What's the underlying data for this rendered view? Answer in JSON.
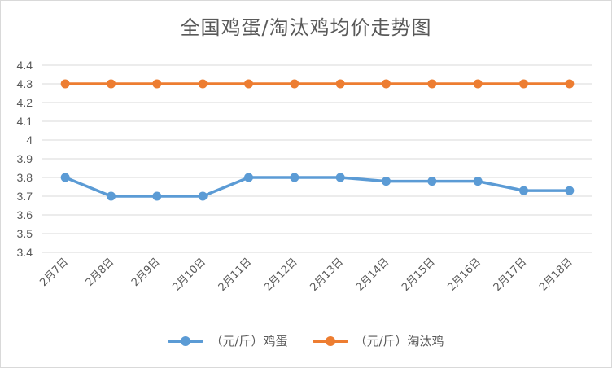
{
  "chart_data": {
    "type": "line",
    "title": "全国鸡蛋/淘汰鸡均价走势图",
    "categories": [
      "2月7日",
      "2月8日",
      "2月9日",
      "2月10日",
      "2月11日",
      "2月12日",
      "2月13日",
      "2月14日",
      "2月15日",
      "2月16日",
      "2月17日",
      "2月18日"
    ],
    "series": [
      {
        "name": "（元/斤）鸡蛋",
        "color": "#5b9bd5",
        "values": [
          3.8,
          3.7,
          3.7,
          3.7,
          3.8,
          3.8,
          3.8,
          3.78,
          3.78,
          3.78,
          3.73,
          3.73
        ]
      },
      {
        "name": "（元/斤）淘汰鸡",
        "color": "#ed7d31",
        "values": [
          4.3,
          4.3,
          4.3,
          4.3,
          4.3,
          4.3,
          4.3,
          4.3,
          4.3,
          4.3,
          4.3,
          4.3
        ]
      }
    ],
    "ylim": [
      3.4,
      4.4
    ],
    "yticks": [
      "3.4",
      "3.5",
      "3.6",
      "3.7",
      "3.8",
      "3.9",
      "4",
      "4.1",
      "4.2",
      "4.3",
      "4.4"
    ],
    "grid": true,
    "legend": "bottom"
  }
}
